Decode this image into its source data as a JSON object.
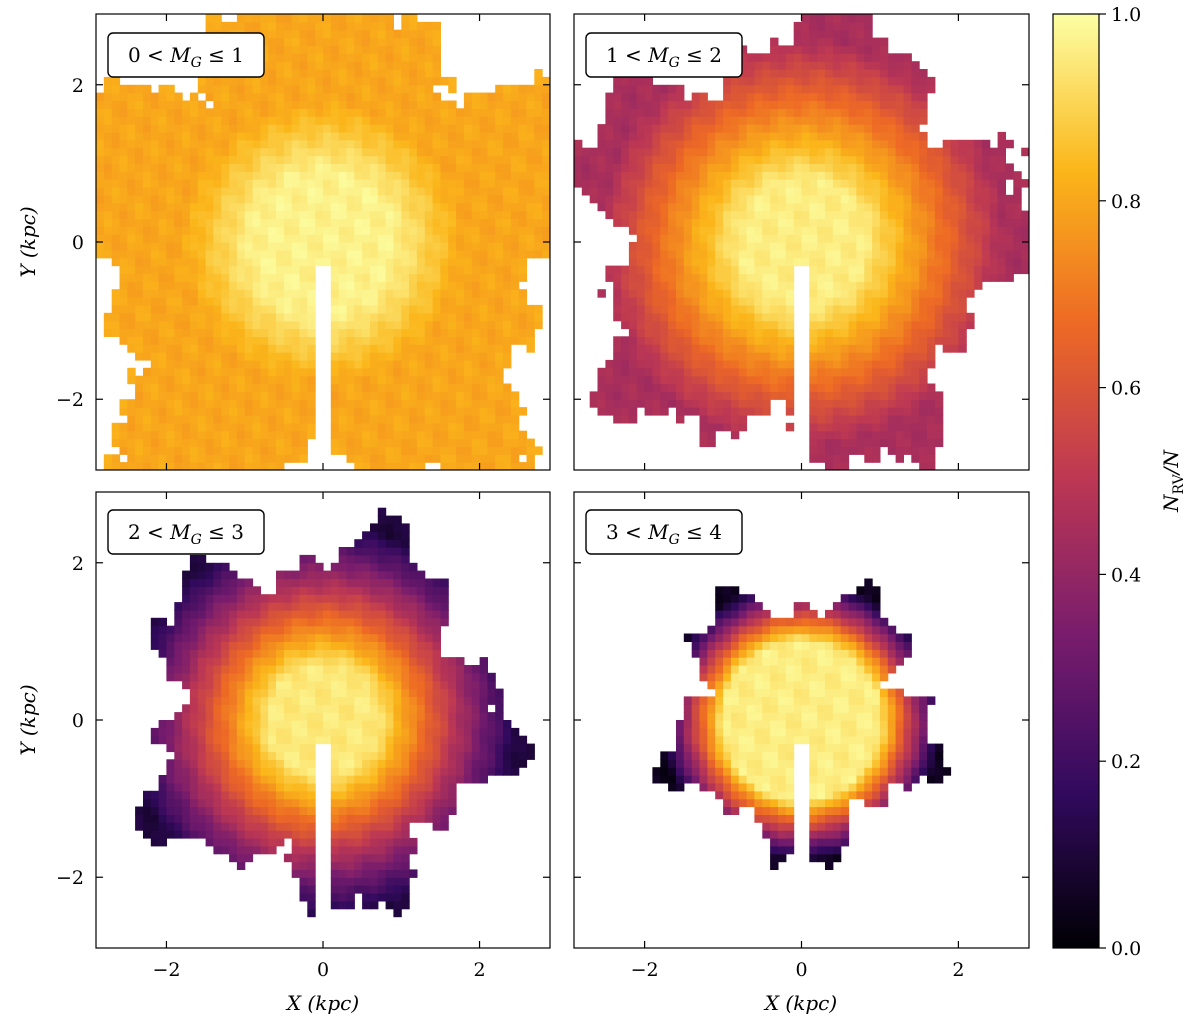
{
  "chart_data": [
    {
      "type": "heatmap",
      "panel_label": {
        "pre": "0 < ",
        "sym": "M",
        "sub": "G",
        "post": " ≤ 1"
      },
      "profile": {
        "core": 0.97,
        "edge": 0.8,
        "r_in": 0.9,
        "r_out": 1.8
      },
      "extent_kpc": 3.2,
      "xlim": [
        -2.9,
        2.9
      ],
      "ylim": [
        -2.9,
        2.9
      ],
      "xticks": [
        "−2",
        "0",
        "2"
      ],
      "yticks": [
        "−2",
        "0",
        "2"
      ],
      "xlabel": "",
      "ylabel": "Y (kpc)"
    },
    {
      "type": "heatmap",
      "panel_label": {
        "pre": "1 < ",
        "sym": "M",
        "sub": "G",
        "post": " ≤ 2"
      },
      "profile": {
        "core": 0.96,
        "edge": 0.45,
        "r_in": 0.8,
        "r_out": 2.6
      },
      "extent_kpc": 2.7,
      "xlim": [
        -2.9,
        2.9
      ],
      "ylim": [
        -2.9,
        2.9
      ],
      "xticks": [
        "−2",
        "0",
        "2"
      ],
      "yticks": [
        "−2",
        "0",
        "2"
      ],
      "xlabel": "",
      "ylabel": ""
    },
    {
      "type": "heatmap",
      "panel_label": {
        "pre": "2 < ",
        "sym": "M",
        "sub": "G",
        "post": " ≤ 3"
      },
      "profile": {
        "core": 0.95,
        "edge": 0.1,
        "r_in": 0.7,
        "r_out": 2.5
      },
      "extent_kpc": 2.2,
      "xlim": [
        -2.9,
        2.9
      ],
      "ylim": [
        -2.9,
        2.9
      ],
      "xticks": [
        "−2",
        "0",
        "2"
      ],
      "yticks": [
        "−2",
        "0",
        "2"
      ],
      "xlabel": "X (kpc)",
      "ylabel": "Y (kpc)"
    },
    {
      "type": "heatmap",
      "panel_label": {
        "pre": "3 < ",
        "sym": "M",
        "sub": "G",
        "post": " ≤ 4"
      },
      "profile": {
        "core": 0.96,
        "edge": 0.04,
        "r_in": 1.0,
        "r_out": 1.8
      },
      "extent_kpc": 1.6,
      "xlim": [
        -2.9,
        2.9
      ],
      "ylim": [
        -2.9,
        2.9
      ],
      "xticks": [
        "−2",
        "0",
        "2"
      ],
      "yticks": [
        "−2",
        "0",
        "2"
      ],
      "xlabel": "X (kpc)",
      "ylabel": ""
    }
  ],
  "colorbar": {
    "colormap": "inferno",
    "range": [
      0.0,
      1.0
    ],
    "tick_values": [
      0.0,
      0.2,
      0.4,
      0.6,
      0.8,
      1.0
    ],
    "tick_labels": [
      "0.0",
      "0.2",
      "0.4",
      "0.6",
      "0.8",
      "1.0"
    ],
    "label_main": "N",
    "label_sub": "RV",
    "label_tail": "/N"
  },
  "colors": {
    "inferno_stops": [
      "#000004",
      "#320a5e",
      "#781c6d",
      "#bc3754",
      "#ed6925",
      "#fbb61a",
      "#fcffa4"
    ],
    "background": "#ffffff",
    "axis": "#000000"
  }
}
